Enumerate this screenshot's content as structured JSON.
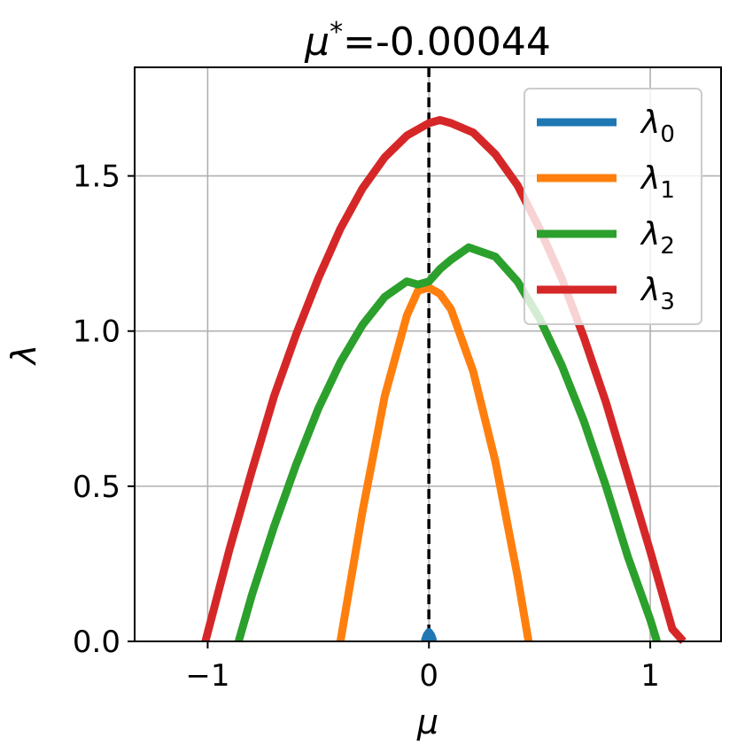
{
  "chart_data": {
    "type": "line",
    "title": "μ*=-0.00044",
    "title_prefix": "μ",
    "title_sup": "*",
    "title_value": "=-0.00044",
    "xlabel": "μ",
    "ylabel": "λ",
    "xlim": [
      -1.33,
      1.32
    ],
    "ylim": [
      0.0,
      1.85
    ],
    "xticks": [
      -1,
      0,
      1
    ],
    "xtick_labels": [
      "−1",
      "0",
      "1"
    ],
    "yticks": [
      0.0,
      0.5,
      1.0,
      1.5
    ],
    "ytick_labels": [
      "0.0",
      "0.5",
      "1.0",
      "1.5"
    ],
    "grid": true,
    "legend_position": "top-right",
    "vline": {
      "x": -0.00044,
      "style": "dashed",
      "color": "#000000"
    },
    "series": [
      {
        "name": "λ",
        "subscript": "0",
        "color": "#1f77b4",
        "x": [
          -0.02,
          -0.01,
          0.0,
          0.01,
          0.02
        ],
        "y": [
          0.0,
          0.02,
          0.03,
          0.02,
          0.0
        ]
      },
      {
        "name": "λ",
        "subscript": "1",
        "color": "#ff7f0e",
        "x": [
          -0.4,
          -0.3,
          -0.2,
          -0.1,
          -0.05,
          0.0,
          0.05,
          0.1,
          0.2,
          0.3,
          0.4,
          0.45
        ],
        "y": [
          0.0,
          0.42,
          0.79,
          1.05,
          1.13,
          1.14,
          1.12,
          1.07,
          0.87,
          0.58,
          0.21,
          0.0
        ]
      },
      {
        "name": "λ",
        "subscript": "2",
        "color": "#2ca02c",
        "x": [
          -0.86,
          -0.8,
          -0.7,
          -0.6,
          -0.5,
          -0.4,
          -0.3,
          -0.2,
          -0.1,
          -0.05,
          0.0,
          0.05,
          0.1,
          0.18,
          0.3,
          0.4,
          0.5,
          0.6,
          0.7,
          0.8,
          0.9,
          1.0,
          1.03
        ],
        "y": [
          0.0,
          0.15,
          0.37,
          0.57,
          0.75,
          0.9,
          1.02,
          1.11,
          1.16,
          1.15,
          1.16,
          1.2,
          1.23,
          1.27,
          1.24,
          1.16,
          1.04,
          0.89,
          0.71,
          0.5,
          0.27,
          0.07,
          0.0
        ]
      },
      {
        "name": "λ",
        "subscript": "3",
        "color": "#d62728",
        "x": [
          -1.01,
          -0.9,
          -0.8,
          -0.7,
          -0.6,
          -0.5,
          -0.4,
          -0.3,
          -0.2,
          -0.1,
          0.0,
          0.05,
          0.1,
          0.2,
          0.3,
          0.4,
          0.5,
          0.6,
          0.7,
          0.8,
          0.9,
          1.0,
          1.1,
          1.15
        ],
        "y": [
          0.0,
          0.3,
          0.55,
          0.79,
          0.99,
          1.17,
          1.33,
          1.46,
          1.56,
          1.63,
          1.67,
          1.68,
          1.67,
          1.64,
          1.57,
          1.47,
          1.33,
          1.17,
          0.98,
          0.77,
          0.53,
          0.29,
          0.04,
          0.0
        ]
      }
    ]
  }
}
